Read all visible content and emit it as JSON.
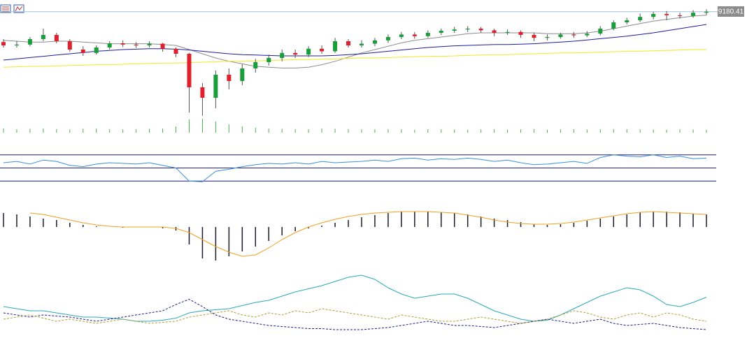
{
  "chart_data": [
    {
      "type": "candlestick",
      "ylim": [
        8900,
        9200
      ],
      "up_color": "#1a9e3a",
      "down_color": "#e0202a",
      "price_line_color": "#9cc3dc",
      "open": [
        9108,
        9100,
        9102,
        9115,
        9125,
        9110,
        9090,
        9082,
        9095,
        9105,
        9102,
        9100,
        9104,
        9092,
        9080,
        9000,
        8975,
        9030,
        9015,
        9045,
        9060,
        9070,
        9082,
        9078,
        9092,
        9086,
        9110,
        9100,
        9104,
        9112,
        9120,
        9126,
        9122,
        9130,
        9135,
        9138,
        9140,
        9136,
        9130,
        9132,
        9125,
        9118,
        9120,
        9126,
        9124,
        9128,
        9140,
        9155,
        9160,
        9168,
        9175,
        9172,
        9170,
        9178
      ],
      "high": [
        9115,
        9110,
        9120,
        9140,
        9130,
        9115,
        9098,
        9100,
        9110,
        9112,
        9108,
        9110,
        9106,
        9095,
        9082,
        9010,
        9040,
        9045,
        9055,
        9068,
        9078,
        9090,
        9090,
        9098,
        9100,
        9118,
        9115,
        9112,
        9118,
        9126,
        9132,
        9132,
        9136,
        9140,
        9144,
        9146,
        9144,
        9140,
        9138,
        9136,
        9130,
        9126,
        9130,
        9132,
        9134,
        9146,
        9160,
        9166,
        9176,
        9180,
        9182,
        9178,
        9184,
        9186
      ],
      "low": [
        9095,
        9095,
        9098,
        9110,
        9105,
        9085,
        9075,
        9078,
        9090,
        9096,
        9094,
        9095,
        9085,
        9072,
        8940,
        8932,
        8950,
        8995,
        9005,
        9035,
        9052,
        9062,
        9070,
        9072,
        9080,
        9082,
        9095,
        9095,
        9098,
        9106,
        9115,
        9116,
        9118,
        9125,
        9130,
        9132,
        9130,
        9122,
        9125,
        9118,
        9110,
        9112,
        9116,
        9118,
        9120,
        9124,
        9136,
        9150,
        9156,
        9162,
        9160,
        9164,
        9166,
        9172
      ],
      "close": [
        9100,
        9102,
        9115,
        9125,
        9110,
        9090,
        9082,
        9095,
        9105,
        9102,
        9100,
        9104,
        9092,
        9080,
        9000,
        8975,
        9030,
        9015,
        9045,
        9060,
        9070,
        9082,
        9078,
        9092,
        9086,
        9110,
        9100,
        9104,
        9112,
        9120,
        9126,
        9122,
        9130,
        9135,
        9138,
        9140,
        9136,
        9130,
        9132,
        9125,
        9118,
        9120,
        9126,
        9124,
        9128,
        9140,
        9155,
        9160,
        9168,
        9175,
        9172,
        9170,
        9178,
        9180.41
      ],
      "lines": [
        {
          "color": "#8c8c8c",
          "values": [
            9112,
            9110,
            9108,
            9108,
            9110,
            9110,
            9108,
            9106,
            9104,
            9104,
            9104,
            9104,
            9102,
            9100,
            9090,
            9080,
            9070,
            9062,
            9056,
            9050,
            9048,
            9046,
            9046,
            9048,
            9054,
            9062,
            9072,
            9082,
            9090,
            9098,
            9106,
            9112,
            9116,
            9120,
            9124,
            9128,
            9130,
            9130,
            9130,
            9130,
            9130,
            9128,
            9128,
            9128,
            9130,
            9134,
            9140,
            9146,
            9152,
            9158,
            9162,
            9166,
            9170,
            9172
          ]
        },
        {
          "color": "#1c1ca0",
          "values": [
            9065,
            9068,
            9071,
            9074,
            9077,
            9080,
            9083,
            9086,
            9088,
            9090,
            9091,
            9092,
            9092,
            9091,
            9089,
            9086,
            9083,
            9080,
            9078,
            9077,
            9076,
            9075,
            9075,
            9075,
            9075,
            9076,
            9078,
            9080,
            9083,
            9086,
            9089,
            9092,
            9095,
            9097,
            9099,
            9100,
            9101,
            9102,
            9102,
            9103,
            9104,
            9106,
            9108,
            9110,
            9113,
            9116,
            9119,
            9122,
            9126,
            9130,
            9135,
            9140,
            9145,
            9150
          ]
        },
        {
          "color": "#f2e62a",
          "values": [
            9048,
            9049,
            9050,
            9050,
            9051,
            9052,
            9053,
            9054,
            9054,
            9055,
            9056,
            9057,
            9058,
            9058,
            9059,
            9060,
            9061,
            9062,
            9062,
            9063,
            9064,
            9065,
            9066,
            9066,
            9067,
            9068,
            9069,
            9070,
            9070,
            9071,
            9072,
            9073,
            9074,
            9074,
            9075,
            9076,
            9077,
            9078,
            9078,
            9079,
            9080,
            9081,
            9082,
            9082,
            9083,
            9084,
            9085,
            9086,
            9086,
            9087,
            9088,
            9089,
            9090,
            9090
          ]
        }
      ],
      "price_label": "9180.41",
      "volume": {
        "color": "#4caf50",
        "ylim": [
          0,
          100
        ],
        "values": [
          30,
          25,
          28,
          30,
          26,
          24,
          28,
          30,
          26,
          24,
          25,
          28,
          30,
          45,
          95,
          100,
          80,
          60,
          45,
          35,
          30,
          28,
          26,
          25,
          30,
          28,
          26,
          24,
          25,
          26,
          24,
          22,
          25,
          24,
          23,
          22,
          24,
          25,
          22,
          24,
          26,
          22,
          24,
          25,
          23,
          24,
          26,
          25,
          24,
          23,
          22,
          24,
          23,
          22
        ]
      }
    },
    {
      "type": "line",
      "ylim": [
        25,
        75
      ],
      "levels": [
        30,
        50,
        70
      ],
      "level_color": "#1c1c8c",
      "series": [
        {
          "color": "#3c8fdc",
          "values": [
            58,
            60,
            56,
            62,
            60,
            54,
            52,
            56,
            58,
            57,
            56,
            58,
            54,
            50,
            30,
            29,
            45,
            48,
            52,
            55,
            57,
            56,
            58,
            56,
            60,
            58,
            59,
            60,
            62,
            60,
            64,
            65,
            62,
            64,
            63,
            65,
            63,
            60,
            62,
            58,
            55,
            56,
            58,
            60,
            57,
            66,
            70,
            68,
            67,
            70,
            66,
            68,
            64,
            65
          ]
        }
      ]
    },
    {
      "type": "macd",
      "ylim": [
        -50,
        25
      ],
      "histogram_color": "#1a1a2e",
      "signal_color": "#f0a020",
      "histogram": [
        20,
        18,
        15,
        12,
        10,
        6,
        3,
        1,
        0,
        -1,
        0,
        0,
        -2,
        -5,
        -25,
        -45,
        -48,
        -42,
        -35,
        -28,
        -20,
        -12,
        -6,
        -2,
        2,
        6,
        10,
        14,
        17,
        20,
        22,
        22,
        22,
        21,
        20,
        18,
        15,
        12,
        10,
        7,
        4,
        3,
        4,
        6,
        9,
        12,
        15,
        18,
        21,
        22,
        22,
        21,
        19,
        18
      ],
      "signal": [
        null,
        null,
        20,
        18,
        14,
        10,
        6,
        3,
        1,
        0,
        0,
        0,
        0,
        -2,
        -8,
        -18,
        -28,
        -36,
        -42,
        -40,
        -30,
        -18,
        -8,
        0,
        6,
        11,
        15,
        18,
        20,
        21,
        22,
        22,
        22,
        21,
        20,
        17,
        14,
        10,
        7,
        5,
        4,
        4,
        5,
        7,
        10,
        13,
        16,
        19,
        21,
        22,
        21,
        20,
        19,
        18
      ]
    },
    {
      "type": "line",
      "ylim": [
        0,
        60
      ],
      "series": [
        {
          "color": "#2aa8b8",
          "dashed": false,
          "values": [
            26,
            24,
            22,
            22,
            20,
            18,
            16,
            16,
            15,
            14,
            12,
            12,
            13,
            15,
            20,
            22,
            23,
            24,
            27,
            30,
            32,
            36,
            40,
            43,
            46,
            50,
            54,
            56,
            52,
            44,
            38,
            34,
            36,
            38,
            38,
            34,
            28,
            22,
            18,
            14,
            12,
            13,
            18,
            24,
            30,
            36,
            40,
            44,
            42,
            36,
            28,
            26,
            30,
            35
          ]
        },
        {
          "color": "#1c1c8c",
          "dashed": true,
          "values": [
            20,
            18,
            16,
            18,
            17,
            16,
            14,
            12,
            14,
            16,
            18,
            20,
            22,
            28,
            33,
            26,
            18,
            14,
            12,
            10,
            8,
            7,
            6,
            5,
            5,
            4,
            4,
            4,
            5,
            6,
            8,
            10,
            12,
            10,
            8,
            8,
            7,
            6,
            8,
            10,
            12,
            14,
            12,
            10,
            12,
            14,
            10,
            8,
            9,
            10,
            8,
            6,
            5,
            4
          ]
        },
        {
          "color": "#b0a030",
          "dashed": true,
          "values": [
            14,
            16,
            18,
            15,
            12,
            14,
            12,
            10,
            12,
            14,
            12,
            10,
            11,
            12,
            16,
            18,
            20,
            22,
            18,
            16,
            20,
            18,
            22,
            20,
            24,
            22,
            20,
            18,
            16,
            14,
            18,
            16,
            14,
            12,
            12,
            14,
            16,
            14,
            12,
            10,
            12,
            14,
            18,
            22,
            20,
            16,
            14,
            18,
            20,
            16,
            20,
            18,
            14,
            12
          ]
        }
      ]
    }
  ]
}
